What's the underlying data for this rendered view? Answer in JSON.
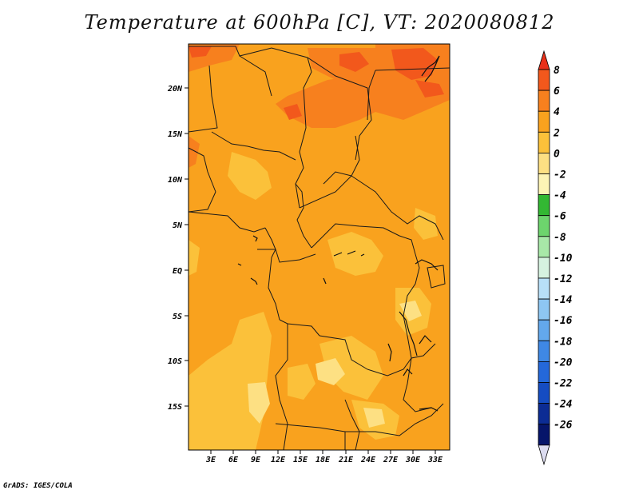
{
  "title": "Temperature at 600hPa [C], VT: 2020080812",
  "credit": "GrADS: IGES/COLA",
  "lat_ticks": [
    "20N",
    "15N",
    "10N",
    "5N",
    "EQ",
    "5S",
    "10S",
    "15S"
  ],
  "lon_ticks": [
    "3E",
    "6E",
    "9E",
    "12E",
    "15E",
    "18E",
    "21E",
    "24E",
    "27E",
    "30E",
    "33E"
  ],
  "colorbar": {
    "labels": [
      "8",
      "6",
      "4",
      "2",
      "0",
      "-2",
      "-4",
      "-6",
      "-8",
      "-10",
      "-12",
      "-14",
      "-16",
      "-18",
      "-20",
      "-22",
      "-24",
      "-26"
    ],
    "colors": [
      "#e8301a",
      "#f2581c",
      "#f7801e",
      "#f9a21e",
      "#fbc13a",
      "#fde083",
      "#fdf4b5",
      "#33b833",
      "#6dd46d",
      "#a8e8a8",
      "#d6f2e0",
      "#b8e0f8",
      "#8ec6f2",
      "#63a8ec",
      "#3f88e4",
      "#2468da",
      "#154cc2",
      "#0c2c94",
      "#06156a",
      "#dcdcf0"
    ]
  }
}
